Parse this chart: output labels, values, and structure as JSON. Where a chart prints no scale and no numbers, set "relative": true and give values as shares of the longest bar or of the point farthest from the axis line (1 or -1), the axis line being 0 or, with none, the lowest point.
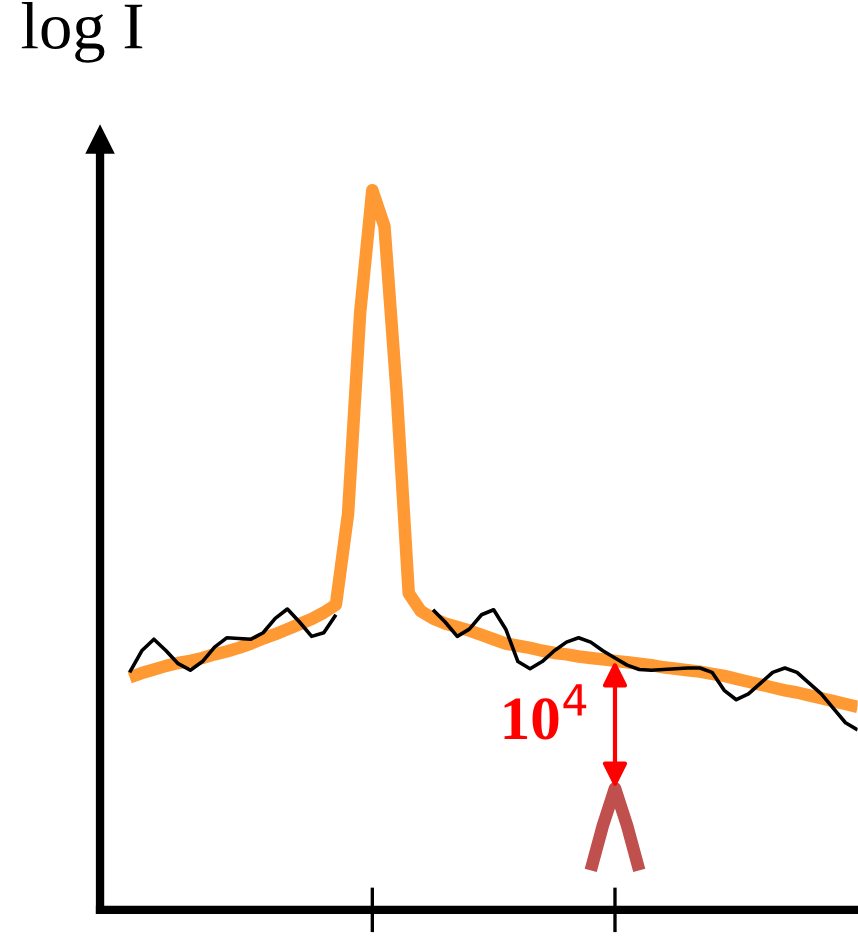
{
  "chart_data": {
    "type": "line",
    "relative": true,
    "ylabel": "log I",
    "grid": false,
    "legend": false,
    "marker": "none",
    "line_style": "solid",
    "annotations": [
      "10$^{4}$"
    ],
    "categories": [
      null,
      null,
      null,
      null,
      null,
      null,
      null,
      null,
      null,
      null,
      null,
      null,
      null,
      null,
      null,
      null,
      null,
      null,
      null,
      null,
      null,
      null,
      null,
      null,
      null,
      null,
      null,
      null,
      null,
      null,
      null,
      null,
      null,
      null,
      null,
      null,
      null,
      null,
      null,
      null,
      null,
      null,
      null,
      null,
      null,
      null,
      null,
      null,
      null,
      null,
      null,
      null,
      null,
      null,
      null,
      null,
      null,
      null,
      null,
      null,
      null
    ],
    "series": [
      {
        "color": "#ff9933",
        "values": [
          0.323,
          0.329,
          0.334,
          0.339,
          0.343,
          0.346,
          0.35,
          0.355,
          0.359,
          0.364,
          0.37,
          0.377,
          0.383,
          0.39,
          0.397,
          0.404,
          0.413,
          0.424,
          0.55,
          0.83,
          1.0,
          0.95,
          0.72,
          0.44,
          0.415,
          0.405,
          0.398,
          0.393,
          0.388,
          0.382,
          0.376,
          0.37,
          0.367,
          0.364,
          0.36,
          0.357,
          0.355,
          0.352,
          0.35,
          0.348,
          0.346,
          0.344,
          0.342,
          0.34,
          0.337,
          0.335,
          0.333,
          0.331,
          0.328,
          0.325,
          0.321,
          0.317,
          0.313,
          0.309,
          0.305,
          0.302,
          0.298,
          0.294,
          0.29,
          0.286,
          0.282
        ]
      },
      {
        "color": "#000000",
        "values": [
          0.33,
          0.36,
          0.376,
          0.36,
          0.342,
          0.333,
          0.345,
          0.365,
          0.378,
          0.377,
          0.376,
          0.385,
          0.405,
          0.418,
          0.4,
          0.38,
          0.385,
          0.41,
          null,
          null,
          null,
          null,
          null,
          null,
          null,
          null,
          null,
          null,
          null,
          null,
          null,
          null,
          null,
          null,
          null,
          null,
          null,
          null,
          null,
          null,
          null,
          null,
          null,
          null,
          null,
          null,
          null,
          null,
          null,
          null,
          null,
          null,
          null,
          null,
          null,
          null,
          null,
          null,
          null,
          null,
          null
        ]
      },
      {
        "color": "#000000",
        "values": [
          null,
          null,
          null,
          null,
          null,
          null,
          null,
          null,
          null,
          null,
          null,
          null,
          null,
          null,
          null,
          null,
          null,
          null,
          null,
          null,
          null,
          null,
          null,
          null,
          null,
          0.417,
          0.4,
          0.38,
          0.39,
          0.41,
          0.417,
          0.39,
          0.345,
          0.335,
          0.345,
          0.36,
          0.372,
          0.378,
          0.372,
          0.36,
          0.35,
          0.34,
          0.334,
          0.333,
          0.334,
          0.335,
          0.336,
          0.336,
          0.33,
          0.305,
          0.292,
          0.3,
          0.315,
          0.33,
          0.336,
          0.33,
          0.315,
          0.3,
          0.28,
          0.26,
          0.25
        ]
      },
      {
        "color": "#c0504d",
        "values": [
          null,
          null,
          null,
          null,
          null,
          null,
          null,
          null,
          null,
          null,
          null,
          null,
          null,
          null,
          null,
          null,
          null,
          null,
          null,
          null,
          null,
          null,
          null,
          null,
          null,
          null,
          null,
          null,
          null,
          null,
          null,
          null,
          null,
          null,
          null,
          null,
          null,
          null,
          0.055,
          0.117,
          0.169,
          0.117,
          0.055,
          null,
          null,
          null,
          null,
          null,
          null,
          null,
          null,
          null,
          null,
          null,
          null,
          null,
          null,
          null,
          null,
          null,
          null
        ]
      }
    ]
  }
}
